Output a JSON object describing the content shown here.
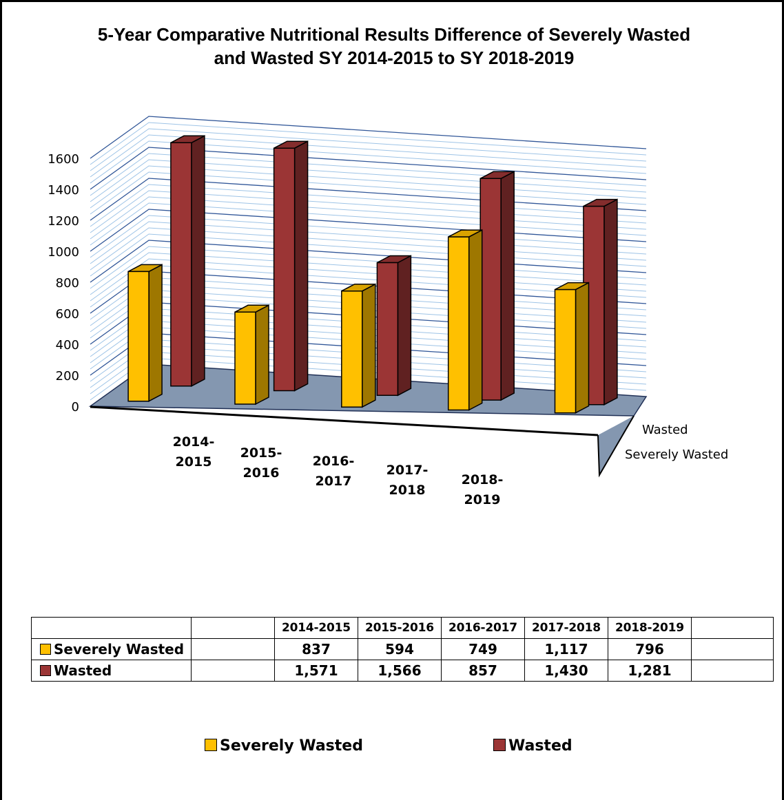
{
  "chart_data": {
    "type": "bar",
    "title": [
      "5-Year Comparative Nutritional Results Difference of Severely Wasted",
      "and Wasted SY 2014-2015 to SY 2018-2019"
    ],
    "categories": [
      "2014-2015",
      "2015-2016",
      "2016-2017",
      "2017-2018",
      "2018-2019"
    ],
    "category_labels": [
      [
        "2014-",
        "2015"
      ],
      [
        "2015-",
        "2016"
      ],
      [
        "2016-",
        "2017"
      ],
      [
        "2017-",
        "2018"
      ],
      [
        "2018-",
        "2019"
      ]
    ],
    "series": [
      {
        "name": "Severely Wasted",
        "values": [
          837,
          594,
          749,
          1117,
          796
        ],
        "display": [
          "837",
          "594",
          "749",
          "1,117",
          "796"
        ],
        "color": "#FFC000"
      },
      {
        "name": "Wasted",
        "values": [
          1571,
          1566,
          857,
          1430,
          1281
        ],
        "display": [
          "1,571",
          "1,566",
          "857",
          "1,430",
          "1,281"
        ],
        "color": "#9B3535"
      }
    ],
    "y_ticks": [
      "0",
      "200",
      "400",
      "600",
      "800",
      "1000",
      "1200",
      "1400",
      "1600"
    ],
    "ylim": [
      0,
      1600
    ],
    "depth_axis_labels": [
      "Wasted",
      "Severely Wasted"
    ],
    "grid": true,
    "legend": "bottom",
    "data_table": true,
    "floor_color": "#8497B0",
    "gridline_color": "#9DC3E6"
  }
}
